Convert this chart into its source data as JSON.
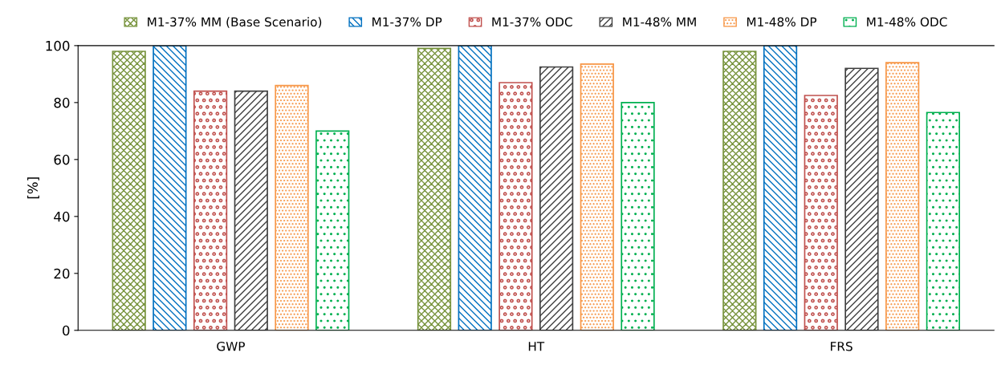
{
  "chart_data": {
    "type": "bar",
    "ylabel": "[%]",
    "categories": [
      "GWP",
      "HT",
      "FRS"
    ],
    "series": [
      {
        "name": "M1-37% MM (Base Scenario)",
        "color": "#77933c",
        "values": [
          98,
          99,
          98
        ]
      },
      {
        "name": "M1-37% DP",
        "color": "#0070c0",
        "values": [
          100,
          100,
          100
        ]
      },
      {
        "name": "M1-37% ODC",
        "color": "#c0504d",
        "values": [
          84,
          87,
          82.5
        ]
      },
      {
        "name": "M1-48% MM",
        "color": "#404040",
        "values": [
          84,
          92.5,
          92
        ]
      },
      {
        "name": "M1-48% DP",
        "color": "#f79646",
        "values": [
          86,
          93.5,
          94
        ]
      },
      {
        "name": "M1-48% ODC",
        "color": "#00b050",
        "values": [
          70,
          80,
          76.5
        ]
      }
    ],
    "ylim": [
      0,
      100
    ],
    "yticks": [
      0,
      20,
      40,
      60,
      80,
      100
    ],
    "grid": false,
    "legend": "top"
  }
}
